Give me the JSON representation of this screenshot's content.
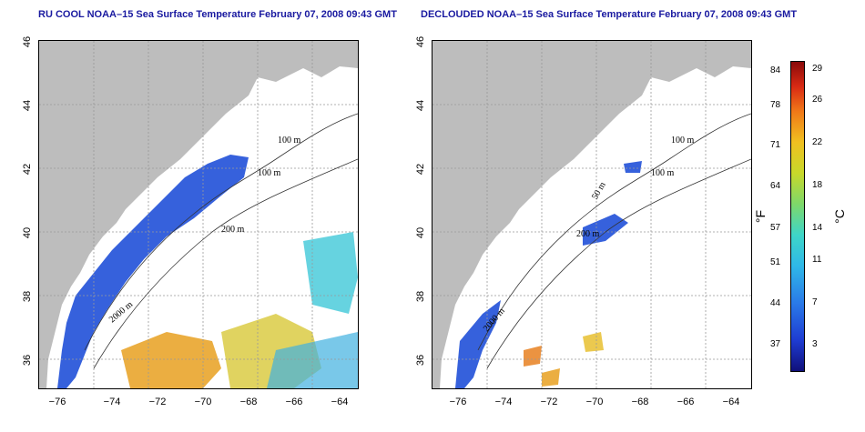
{
  "panels": [
    {
      "title": "RU COOL NOAA–15 Sea Surface Temperature February 07, 2008 09:43 GMT"
    },
    {
      "title": "DECLOUDED NOAA–15 Sea Surface Temperature February 07, 2008 09:43 GMT"
    }
  ],
  "axes": {
    "y_ticks": [
      "46",
      "44",
      "42",
      "40",
      "38",
      "36"
    ],
    "x_ticks": [
      "−76",
      "−74",
      "−72",
      "−70",
      "−68",
      "−66",
      "−64"
    ]
  },
  "contour_labels": [
    "100 m",
    "100 m",
    "200 m",
    "2000 m"
  ],
  "contour_labels_right": [
    "100 m",
    "100 m",
    "200 m",
    "50 m",
    "2000 m"
  ],
  "colorbar": {
    "f_labels": [
      "84",
      "78",
      "71",
      "64",
      "57",
      "51",
      "44",
      "37"
    ],
    "c_labels": [
      "29",
      "26",
      "22",
      "18",
      "14",
      "11",
      "7",
      "3"
    ],
    "unit_f": "°F",
    "unit_c": "°C"
  },
  "colors": {
    "land": "#bdbdbd",
    "title": "#1a1aa0",
    "grid": "#999999"
  }
}
